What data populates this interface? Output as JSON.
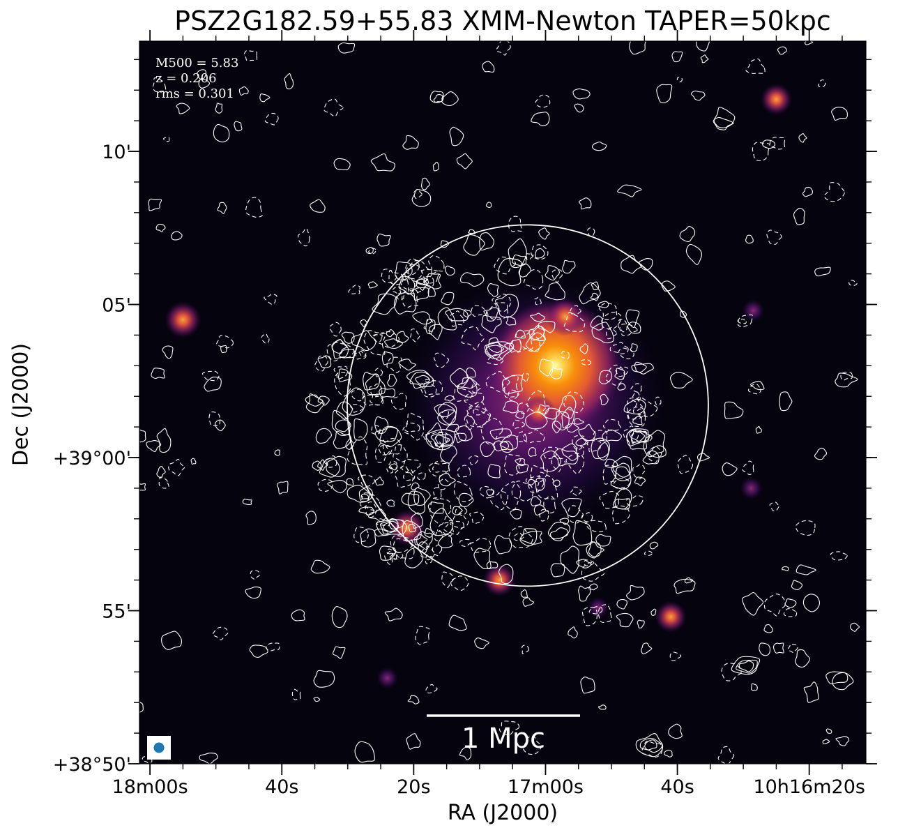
{
  "chart_data": {
    "type": "heatmap",
    "title": "PSZ2G182.59+55.83 XMM-Newton TAPER=50kpc",
    "xlabel": "RA (J2000)",
    "ylabel": "Dec (J2000)",
    "x_ticks": [
      {
        "label": "18m00s",
        "ra_sec": 180
      },
      {
        "label": "40s",
        "ra_sec": 160
      },
      {
        "label": "20s",
        "ra_sec": 140
      },
      {
        "label": "17m00s",
        "ra_sec": 120
      },
      {
        "label": "40s",
        "ra_sec": 100
      },
      {
        "label": "10h16m20s",
        "ra_sec": 80
      }
    ],
    "y_ticks": [
      {
        "label": "10'",
        "dec_arcmin": 10
      },
      {
        "label": "05'",
        "dec_arcmin": 5
      },
      {
        "label": "+39°00'",
        "dec_arcmin": 0
      },
      {
        "label": "55'",
        "dec_arcmin": -5
      },
      {
        "label": "+38°50'",
        "dec_arcmin": -10
      }
    ],
    "xlim_ra_sec": [
      181.6,
      71.4
    ],
    "ylim_dec_arcmin": [
      -10,
      13.6
    ],
    "annotations": {
      "m500": "M500 = 5.83",
      "redshift": "z = 0.206",
      "rms": "rms = 0.301",
      "scale_bar": "1 Mpc"
    },
    "colormap": "inferno",
    "contour_color": "#ffffff",
    "beam_color": "#1f77b4",
    "circle": {
      "ra_sec": 122.7,
      "dec_arcmin": 1.7,
      "radius_arcmin": 5.9
    },
    "xray_sources": [
      {
        "ra_sec": 118.5,
        "dec_arcmin": 3.0,
        "intensity": 1.0
      },
      {
        "ra_sec": 117.0,
        "dec_arcmin": 4.6,
        "intensity": 0.75
      },
      {
        "ra_sec": 121.0,
        "dec_arcmin": 1.5,
        "intensity": 0.55
      },
      {
        "ra_sec": 141.0,
        "dec_arcmin": -2.3,
        "intensity": 0.7
      },
      {
        "ra_sec": 175.0,
        "dec_arcmin": 4.5,
        "intensity": 0.7
      },
      {
        "ra_sec": 127.0,
        "dec_arcmin": -4.0,
        "intensity": 0.55
      },
      {
        "ra_sec": 101.0,
        "dec_arcmin": -5.2,
        "intensity": 0.5
      },
      {
        "ra_sec": 85.0,
        "dec_arcmin": 11.7,
        "intensity": 0.5
      },
      {
        "ra_sec": 88.5,
        "dec_arcmin": 4.8,
        "intensity": 0.35
      },
      {
        "ra_sec": 88.8,
        "dec_arcmin": -1.0,
        "intensity": 0.35
      },
      {
        "ra_sec": 144.0,
        "dec_arcmin": -7.2,
        "intensity": 0.3
      },
      {
        "ra_sec": 112.0,
        "dec_arcmin": -4.9,
        "intensity": 0.3
      }
    ]
  }
}
